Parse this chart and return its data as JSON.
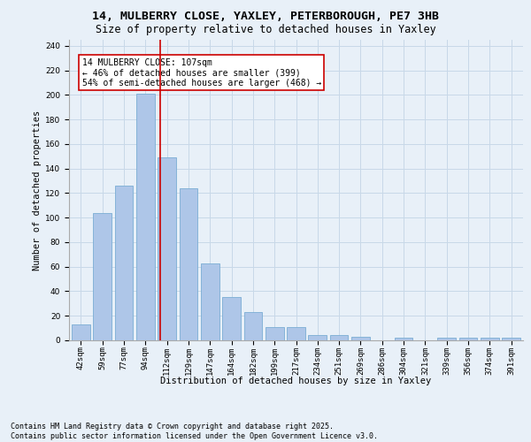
{
  "title_line1": "14, MULBERRY CLOSE, YAXLEY, PETERBOROUGH, PE7 3HB",
  "title_line2": "Size of property relative to detached houses in Yaxley",
  "xlabel": "Distribution of detached houses by size in Yaxley",
  "ylabel": "Number of detached properties",
  "footer": "Contains HM Land Registry data © Crown copyright and database right 2025.\nContains public sector information licensed under the Open Government Licence v3.0.",
  "categories": [
    "42sqm",
    "59sqm",
    "77sqm",
    "94sqm",
    "112sqm",
    "129sqm",
    "147sqm",
    "164sqm",
    "182sqm",
    "199sqm",
    "217sqm",
    "234sqm",
    "251sqm",
    "269sqm",
    "286sqm",
    "304sqm",
    "321sqm",
    "339sqm",
    "356sqm",
    "374sqm",
    "391sqm"
  ],
  "values": [
    13,
    104,
    126,
    201,
    149,
    124,
    63,
    35,
    23,
    11,
    11,
    4,
    4,
    3,
    0,
    2,
    0,
    2,
    2,
    2,
    2
  ],
  "bar_color": "#aec6e8",
  "bar_edge_color": "#7aadd4",
  "grid_color": "#c8d8e8",
  "background_color": "#e8f0f8",
  "vline_x": 3.68,
  "vline_color": "#cc0000",
  "annotation_text": "14 MULBERRY CLOSE: 107sqm\n← 46% of detached houses are smaller (399)\n54% of semi-detached houses are larger (468) →",
  "ylim": [
    0,
    245
  ],
  "yticks": [
    0,
    20,
    40,
    60,
    80,
    100,
    120,
    140,
    160,
    180,
    200,
    220,
    240
  ],
  "title_fontsize": 9.5,
  "subtitle_fontsize": 8.5,
  "axis_label_fontsize": 7.5,
  "tick_fontsize": 6.5,
  "footer_fontsize": 6,
  "annotation_fontsize": 7
}
